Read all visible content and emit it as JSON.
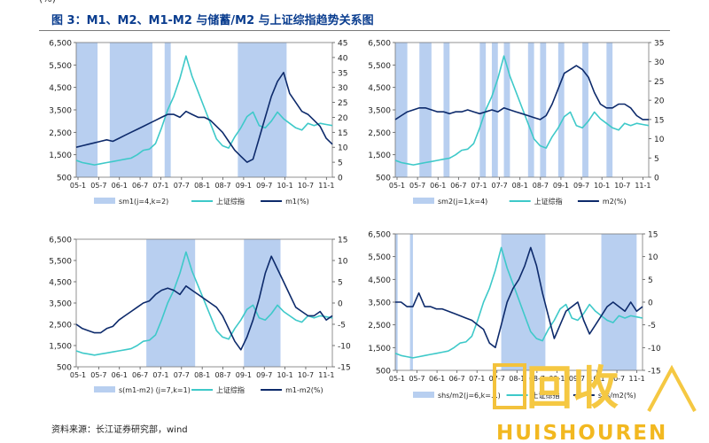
{
  "header": {
    "top_cut_text": "(%)",
    "figure_title": "图 3：M1、M2、M1-M2 与储蓄/M2 与上证综指趋势关系图"
  },
  "footer": {
    "source": "资料来源：长江证券研究部，wind"
  },
  "watermark": {
    "big_text": "回收",
    "small_text": "HUISHOUREN"
  },
  "colors": {
    "shade": "#b8cff0",
    "index_line": "#3ec9c9",
    "macro_line": "#0d2a6b"
  },
  "chart_data": [
    {
      "type": "line",
      "title": "上证综指 vs m1(%)",
      "left_axis": {
        "ylim": [
          500,
          6500
        ],
        "ticks": [
          "6,500",
          "5,500",
          "4,500",
          "3,500",
          "2,500",
          "1,500",
          "500"
        ]
      },
      "right_axis": {
        "ylim": [
          0,
          45
        ],
        "ticks": [
          "45",
          "40",
          "35",
          "30",
          "25",
          "20",
          "15",
          "10",
          "5",
          "0"
        ]
      },
      "x_ticks": [
        "05-1",
        "05-7",
        "06-1",
        "06-7",
        "07-1",
        "07-7",
        "08-1",
        "08-7",
        "09-1",
        "09-7",
        "10-1",
        "10-7",
        "11-1"
      ],
      "shaded_regions": [
        [
          0,
          3.5
        ],
        [
          5.5,
          12.5
        ],
        [
          14.5,
          15.5
        ],
        [
          26.5,
          34.5
        ]
      ],
      "legend": [
        "sm1(j=4,k=2)",
        "上证综指",
        "m1(%)"
      ],
      "series": [
        {
          "name": "上证综指",
          "axis": "left",
          "x": [
            0,
            1,
            2,
            3,
            4,
            5,
            6,
            7,
            8,
            9,
            10,
            11,
            12,
            13,
            14,
            15,
            16,
            17,
            18,
            19,
            20,
            21,
            22,
            23,
            24,
            25,
            26,
            27,
            28,
            29,
            30,
            31,
            32,
            33,
            34,
            35,
            36,
            37,
            38,
            39,
            40,
            41,
            42
          ],
          "values": [
            1250,
            1150,
            1100,
            1050,
            1100,
            1150,
            1200,
            1250,
            1300,
            1350,
            1500,
            1700,
            1750,
            2000,
            2700,
            3500,
            4100,
            4900,
            5900,
            5000,
            4300,
            3600,
            2900,
            2200,
            1900,
            1800,
            2300,
            2700,
            3200,
            3400,
            2800,
            2700,
            3000,
            3400,
            3100,
            2900,
            2700,
            2600,
            2900,
            2800,
            2900,
            2850,
            2800
          ]
        },
        {
          "name": "m1(%)",
          "axis": "right",
          "x": [
            0,
            1,
            2,
            3,
            4,
            5,
            6,
            7,
            8,
            9,
            10,
            11,
            12,
            13,
            14,
            15,
            16,
            17,
            18,
            19,
            20,
            21,
            22,
            23,
            24,
            25,
            26,
            27,
            28,
            29,
            30,
            31,
            32,
            33,
            34,
            35,
            36,
            37,
            38,
            39,
            40,
            41,
            42
          ],
          "values": [
            10,
            10.5,
            11,
            11.5,
            12,
            12.5,
            12,
            13,
            14,
            15,
            16,
            17,
            18,
            19,
            20,
            21,
            21,
            20,
            22,
            21,
            20,
            20,
            19,
            17,
            15,
            12,
            9,
            7,
            5,
            6,
            13,
            20,
            27,
            32,
            35,
            28,
            25,
            22,
            21,
            19,
            17,
            13,
            11
          ]
        }
      ]
    },
    {
      "type": "line",
      "title": "上证综指 vs m2(%)",
      "left_axis": {
        "ylim": [
          500,
          6500
        ],
        "ticks": [
          "6,500",
          "5,500",
          "4,500",
          "3,500",
          "2,500",
          "1,500",
          "500"
        ]
      },
      "right_axis": {
        "ylim": [
          0,
          35
        ],
        "ticks": [
          "35",
          "30",
          "25",
          "20",
          "15",
          "10",
          "5",
          "0"
        ]
      },
      "x_ticks": [
        "05-1",
        "05-7",
        "06-1",
        "06-7",
        "07-1",
        "07-7",
        "08-1",
        "08-7",
        "09-1",
        "09-7",
        "10-1",
        "10-7",
        "11-1"
      ],
      "shaded_regions": [
        [
          0,
          2
        ],
        [
          4,
          6
        ],
        [
          8,
          9
        ],
        [
          14,
          15
        ],
        [
          16,
          17
        ],
        [
          18,
          19
        ],
        [
          22,
          23
        ],
        [
          24,
          25
        ],
        [
          27,
          28
        ],
        [
          31,
          32
        ],
        [
          35,
          36
        ]
      ],
      "legend": [
        "sm2(j=1,k=4)",
        "上证综指",
        "m2(%)"
      ],
      "series": [
        {
          "name": "上证综指",
          "axis": "left",
          "x": [
            0,
            1,
            2,
            3,
            4,
            5,
            6,
            7,
            8,
            9,
            10,
            11,
            12,
            13,
            14,
            15,
            16,
            17,
            18,
            19,
            20,
            21,
            22,
            23,
            24,
            25,
            26,
            27,
            28,
            29,
            30,
            31,
            32,
            33,
            34,
            35,
            36,
            37,
            38,
            39,
            40,
            41,
            42
          ],
          "values": [
            1250,
            1150,
            1100,
            1050,
            1100,
            1150,
            1200,
            1250,
            1300,
            1350,
            1500,
            1700,
            1750,
            2000,
            2700,
            3500,
            4100,
            4900,
            5900,
            5000,
            4300,
            3600,
            2900,
            2200,
            1900,
            1800,
            2300,
            2700,
            3200,
            3400,
            2800,
            2700,
            3000,
            3400,
            3100,
            2900,
            2700,
            2600,
            2900,
            2800,
            2900,
            2850,
            2800
          ]
        },
        {
          "name": "m2(%)",
          "axis": "right",
          "x": [
            0,
            1,
            2,
            3,
            4,
            5,
            6,
            7,
            8,
            9,
            10,
            11,
            12,
            13,
            14,
            15,
            16,
            17,
            18,
            19,
            20,
            21,
            22,
            23,
            24,
            25,
            26,
            27,
            28,
            29,
            30,
            31,
            32,
            33,
            34,
            35,
            36,
            37,
            38,
            39,
            40,
            41,
            42
          ],
          "values": [
            15,
            16,
            17,
            17.5,
            18,
            18,
            17.5,
            17,
            17,
            16.5,
            17,
            17,
            17.5,
            17,
            16.5,
            17,
            17.5,
            17,
            18,
            17.5,
            17,
            16.5,
            16,
            15.5,
            15,
            16,
            19,
            23,
            27,
            28,
            29,
            28,
            26,
            22,
            19,
            18,
            18,
            19,
            19,
            18,
            16,
            15,
            15
          ]
        }
      ]
    },
    {
      "type": "line",
      "title": "上证综指 vs m1-m2(%)",
      "left_axis": {
        "ylim": [
          500,
          6500
        ],
        "ticks": [
          "6,500",
          "5,500",
          "4,500",
          "3,500",
          "2,500",
          "1,500",
          "500"
        ]
      },
      "right_axis": {
        "ylim": [
          -15,
          15
        ],
        "ticks": [
          "15",
          "10",
          "5",
          "0",
          "-5",
          "-10",
          "-15"
        ]
      },
      "x_ticks": [
        "05-1",
        "05-7",
        "06-1",
        "06-7",
        "07-1",
        "07-7",
        "08-1",
        "08-7",
        "09-1",
        "09-7",
        "10-1",
        "10-7",
        "11-1"
      ],
      "shaded_regions": [
        [
          11.5,
          19.5
        ],
        [
          27.5,
          33.5
        ]
      ],
      "legend": [
        "s(m1-m2) (j=7,k=1)",
        "上证综指",
        "m1-m2(%)"
      ],
      "series": [
        {
          "name": "上证综指",
          "axis": "left",
          "x": [
            0,
            1,
            2,
            3,
            4,
            5,
            6,
            7,
            8,
            9,
            10,
            11,
            12,
            13,
            14,
            15,
            16,
            17,
            18,
            19,
            20,
            21,
            22,
            23,
            24,
            25,
            26,
            27,
            28,
            29,
            30,
            31,
            32,
            33,
            34,
            35,
            36,
            37,
            38,
            39,
            40,
            41,
            42
          ],
          "values": [
            1250,
            1150,
            1100,
            1050,
            1100,
            1150,
            1200,
            1250,
            1300,
            1350,
            1500,
            1700,
            1750,
            2000,
            2700,
            3500,
            4100,
            4900,
            5900,
            5000,
            4300,
            3600,
            2900,
            2200,
            1900,
            1800,
            2300,
            2700,
            3200,
            3400,
            2800,
            2700,
            3000,
            3400,
            3100,
            2900,
            2700,
            2600,
            2900,
            2800,
            2900,
            2850,
            2800
          ]
        },
        {
          "name": "m1-m2(%)",
          "axis": "right",
          "x": [
            0,
            1,
            2,
            3,
            4,
            5,
            6,
            7,
            8,
            9,
            10,
            11,
            12,
            13,
            14,
            15,
            16,
            17,
            18,
            19,
            20,
            21,
            22,
            23,
            24,
            25,
            26,
            27,
            28,
            29,
            30,
            31,
            32,
            33,
            34,
            35,
            36,
            37,
            38,
            39,
            40,
            41,
            42
          ],
          "values": [
            -5,
            -6,
            -6.5,
            -7,
            -7,
            -6,
            -5.5,
            -4,
            -3,
            -2,
            -1,
            0,
            0.5,
            2,
            3,
            3.5,
            3,
            2,
            4,
            3,
            2,
            1,
            0,
            -1,
            -3,
            -6,
            -9,
            -11,
            -8,
            -4,
            1,
            7,
            11,
            8,
            5,
            2,
            -1,
            -2,
            -3,
            -3,
            -2,
            -4,
            -3
          ]
        }
      ]
    },
    {
      "type": "line",
      "title": "上证综指 vs shs/m2",
      "left_axis": {
        "ylim": [
          500,
          6500
        ],
        "ticks": [
          "6,500",
          "5,500",
          "4,500",
          "3,500",
          "2,500",
          "1,500",
          "500"
        ]
      },
      "right_axis": {
        "ylim": [
          -15,
          15
        ],
        "ticks": [
          "15",
          "10",
          "5",
          "0",
          "-5",
          "-10",
          "-15"
        ]
      },
      "x_ticks": [
        "05-1",
        "05-7",
        "06-1",
        "06-7",
        "07-1",
        "07-7",
        "08-1",
        "08-7",
        "09-1",
        "09-7",
        "10-1",
        "10-7",
        "11-1"
      ],
      "shaded_regions": [
        [
          0,
          0.4
        ],
        [
          2.5,
          3
        ],
        [
          18,
          25.5
        ],
        [
          35,
          41
        ]
      ],
      "legend": [
        "shs/m2(j=6,k=...)",
        "上证综指",
        "shs/m2(%)"
      ],
      "series": [
        {
          "name": "上证综指",
          "axis": "left",
          "x": [
            0,
            1,
            2,
            3,
            4,
            5,
            6,
            7,
            8,
            9,
            10,
            11,
            12,
            13,
            14,
            15,
            16,
            17,
            18,
            19,
            20,
            21,
            22,
            23,
            24,
            25,
            26,
            27,
            28,
            29,
            30,
            31,
            32,
            33,
            34,
            35,
            36,
            37,
            38,
            39,
            40,
            41,
            42
          ],
          "values": [
            1250,
            1150,
            1100,
            1050,
            1100,
            1150,
            1200,
            1250,
            1300,
            1350,
            1500,
            1700,
            1750,
            2000,
            2700,
            3500,
            4100,
            4900,
            5900,
            5000,
            4300,
            3600,
            2900,
            2200,
            1900,
            1800,
            2300,
            2700,
            3200,
            3400,
            2800,
            2700,
            3000,
            3400,
            3100,
            2900,
            2700,
            2600,
            2900,
            2800,
            2900,
            2850,
            2800
          ]
        },
        {
          "name": "shs/m2(%)",
          "axis": "right",
          "x": [
            0,
            1,
            2,
            3,
            4,
            5,
            6,
            7,
            8,
            9,
            10,
            11,
            12,
            13,
            14,
            15,
            16,
            17,
            18,
            19,
            20,
            21,
            22,
            23,
            24,
            25,
            26,
            27,
            28,
            29,
            30,
            31,
            32,
            33,
            34,
            35,
            36,
            37,
            38,
            39,
            40,
            41,
            42
          ],
          "values": [
            0,
            0,
            -1,
            -1,
            2,
            -1,
            -1,
            -1.5,
            -1.5,
            -2,
            -2.5,
            -3,
            -3.5,
            -4,
            -5,
            -6,
            -9,
            -10,
            -5,
            0,
            3,
            5,
            8,
            12,
            8,
            2,
            -3,
            -8,
            -5,
            -2,
            -1,
            0,
            -4,
            -7,
            -5,
            -3,
            -1,
            0,
            -1,
            -2,
            0,
            -2,
            -1
          ]
        }
      ]
    }
  ]
}
